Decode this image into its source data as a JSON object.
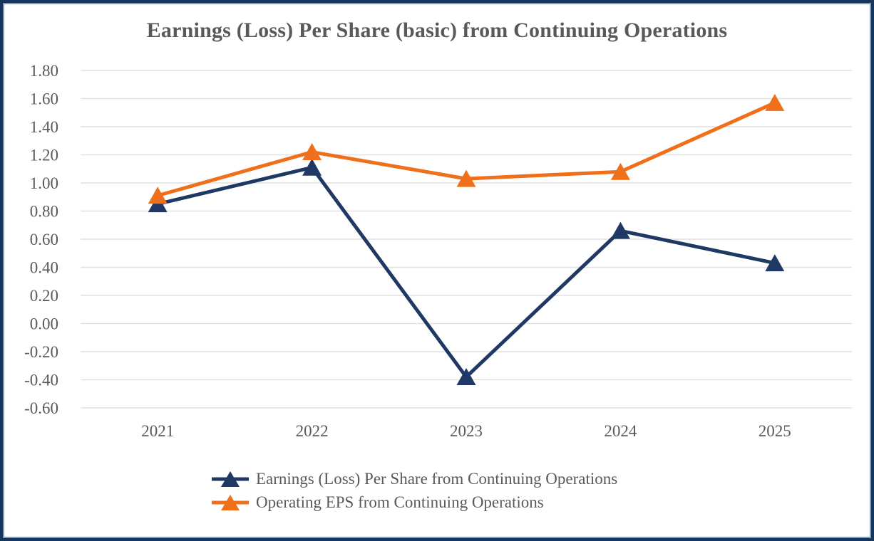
{
  "chart": {
    "title": "Earnings (Loss) Per Share (basic) from Continuing Operations"
  },
  "chart_data": {
    "type": "line",
    "title": "Earnings (Loss) Per Share (basic) from Continuing Operations",
    "categories": [
      "2021",
      "2022",
      "2023",
      "2024",
      "2025"
    ],
    "series": [
      {
        "name": "Earnings (Loss) Per Share from Continuing Operations",
        "color": "#1F3864",
        "marker": "triangle",
        "values": [
          0.85,
          1.11,
          -0.38,
          0.66,
          0.43
        ]
      },
      {
        "name": "Operating EPS from Continuing Operations",
        "color": "#EF6F1A",
        "marker": "triangle",
        "values": [
          0.91,
          1.22,
          1.03,
          1.08,
          1.57
        ]
      }
    ],
    "xlabel": "",
    "ylabel": "",
    "ylim": [
      -0.6,
      1.8
    ],
    "ytick_step": 0.2,
    "ytick_labels": [
      "1.80",
      "1.60",
      "1.40",
      "1.20",
      "1.00",
      "0.80",
      "0.60",
      "0.40",
      "0.20",
      "0.00",
      "-0.20",
      "-0.40",
      "-0.60"
    ],
    "grid": "horizontal",
    "gridline_color": "#E1E1E1",
    "axis_text_color": "#595959",
    "legend_position": "bottom-left"
  }
}
